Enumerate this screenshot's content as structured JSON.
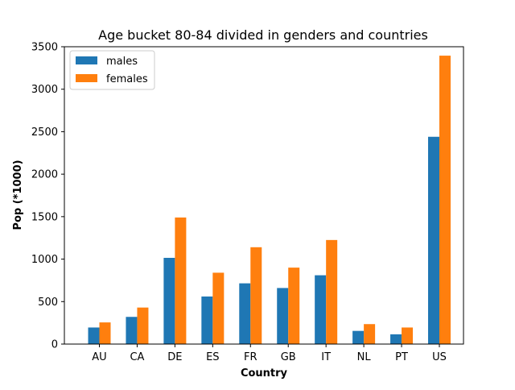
{
  "chart_data": {
    "type": "bar",
    "title": "Age bucket 80-84 divided in genders and countries",
    "xlabel": "Country",
    "ylabel": "Pop (*1000)",
    "categories": [
      "AU",
      "CA",
      "DE",
      "ES",
      "FR",
      "GB",
      "IT",
      "NL",
      "PT",
      "US"
    ],
    "series": [
      {
        "name": "males",
        "color": "#1f77b4",
        "values": [
          195,
          320,
          1015,
          560,
          715,
          660,
          810,
          155,
          115,
          2440
        ]
      },
      {
        "name": "females",
        "color": "#ff7f0e",
        "values": [
          255,
          430,
          1490,
          840,
          1140,
          900,
          1225,
          235,
          195,
          3395
        ]
      }
    ],
    "ylim": [
      0,
      3500
    ],
    "yticks": [
      0,
      500,
      1000,
      1500,
      2000,
      2500,
      3000,
      3500
    ],
    "grid": false,
    "legend_position": "top-left"
  }
}
